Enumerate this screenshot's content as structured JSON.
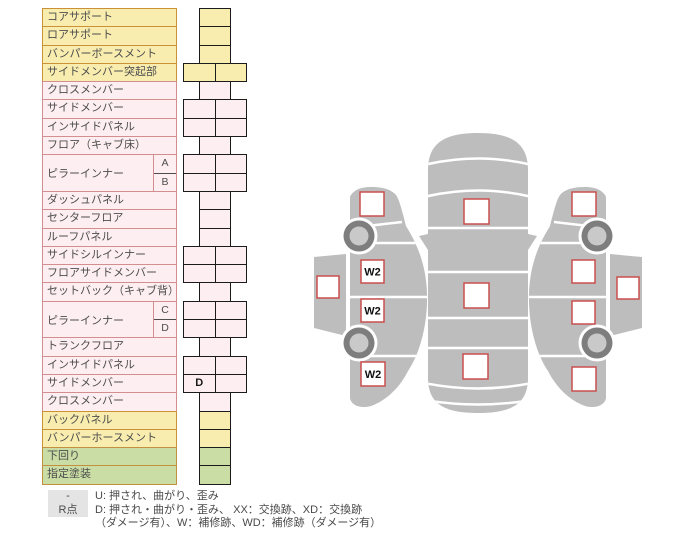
{
  "table": {
    "rows": [
      {
        "label": "コアサポート",
        "color": "yellow",
        "cells": "single"
      },
      {
        "label": "ロアサポート",
        "color": "yellow",
        "cells": "single"
      },
      {
        "label": "バンパーボースメント",
        "color": "yellow",
        "cells": "single"
      },
      {
        "label": "サイドメンバー突起部",
        "color": "yellow",
        "cells": "double"
      },
      {
        "label": "クロスメンバー",
        "color": "pink",
        "cells": "single"
      },
      {
        "label": "サイドメンバー",
        "color": "pink",
        "cells": "double"
      },
      {
        "label": "インサイドパネル",
        "color": "pink",
        "cells": "double"
      },
      {
        "label": "フロア（キャブ床）",
        "color": "pink",
        "cells": "single"
      },
      {
        "label": "ピラーインナー",
        "color": "pink",
        "subrows": [
          {
            "sub": "A",
            "cells": "double"
          },
          {
            "sub": "B",
            "cells": "double"
          }
        ]
      },
      {
        "label": "ダッシュパネル",
        "color": "pink",
        "cells": "single"
      },
      {
        "label": "センターフロア",
        "color": "pink",
        "cells": "single"
      },
      {
        "label": "ルーフパネル",
        "color": "pink",
        "cells": "single"
      },
      {
        "label": "サイドシルインナー",
        "color": "pink",
        "cells": "double"
      },
      {
        "label": "フロアサイドメンバー",
        "color": "pink",
        "cells": "double"
      },
      {
        "label": "セットバック（キャブ背）",
        "color": "pink",
        "cells": "single"
      },
      {
        "label": "ピラーインナー",
        "color": "pink",
        "subrows": [
          {
            "sub": "C",
            "cells": "double"
          },
          {
            "sub": "D",
            "cells": "double"
          }
        ]
      },
      {
        "label": "トランクフロア",
        "color": "pink",
        "cells": "single"
      },
      {
        "label": "インサイドパネル",
        "color": "pink",
        "cells": "double"
      },
      {
        "label": "サイドメンバー",
        "color": "pink",
        "cells": "double",
        "values": [
          "D",
          ""
        ]
      },
      {
        "label": "クロスメンバー",
        "color": "pink",
        "cells": "single"
      },
      {
        "label": "バックパネル",
        "color": "yellow",
        "cells": "single"
      },
      {
        "label": "バンパーホースメント",
        "color": "yellow",
        "cells": "single"
      },
      {
        "label": "下回り",
        "color": "green",
        "cells": "single"
      },
      {
        "label": "指定塗装",
        "color": "green",
        "cells": "single"
      }
    ]
  },
  "diagram": {
    "views": [
      {
        "name": "left-side",
        "markers": [
          {
            "part": "front-fender",
            "label": ""
          },
          {
            "part": "window",
            "label": ""
          },
          {
            "part": "front-door",
            "label": "W2"
          },
          {
            "part": "rear-door",
            "label": "W2"
          },
          {
            "part": "rear-fender",
            "label": "W2"
          }
        ]
      },
      {
        "name": "top",
        "markers": [
          {
            "part": "hood",
            "label": ""
          },
          {
            "part": "roof",
            "label": ""
          },
          {
            "part": "trunk",
            "label": ""
          }
        ]
      },
      {
        "name": "right-side",
        "markers": [
          {
            "part": "front-fender",
            "label": ""
          },
          {
            "part": "front-door",
            "label": ""
          },
          {
            "part": "rear-door",
            "label": ""
          },
          {
            "part": "rear-fender",
            "label": ""
          },
          {
            "part": "window",
            "label": ""
          }
        ]
      }
    ]
  },
  "legend": {
    "rows": [
      {
        "key": "-",
        "text": "U: 押され、曲がり、歪み"
      },
      {
        "key": "R点",
        "text": "D: 押され・曲がり・歪み、 XX：交換跡、XD：交換跡"
      },
      {
        "key": "",
        "text": "（ダメージ有）、W：補修跡、WD：補修跡（ダメージ有）"
      }
    ]
  },
  "colors": {
    "yellow_bg": "#f8edae",
    "yellow_border": "#cb9136",
    "pink_bg": "#fdeef1",
    "pink_border": "#d38f8f",
    "green_bg": "#cadda4",
    "green_border": "#c19040",
    "marker_border": "#c94f4f",
    "car_body": "#bdbdbd",
    "wheel_ring": "#7e7e7e",
    "wheel_hub": "#c9c9c9",
    "legend_key_bg": "#e4e4e4",
    "text": "#4d4d4d"
  }
}
